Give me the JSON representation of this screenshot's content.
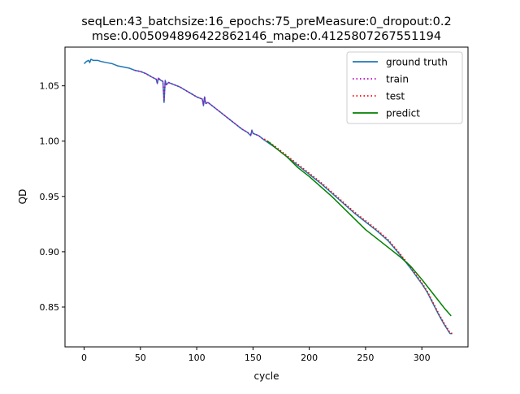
{
  "chart_data": {
    "type": "line",
    "title": "seqLen:43_batchsize:16_epochs:75_preMeasure:0_dropout:0.2",
    "subtitle": "mse:0.005094896422862146_mape:0.4125807267551194",
    "xlabel": "cycle",
    "ylabel": "QD",
    "xlim": [
      -17,
      341
    ],
    "ylim": [
      0.814,
      1.085
    ],
    "xticks": [
      0,
      50,
      100,
      150,
      200,
      250,
      300
    ],
    "yticks": [
      0.85,
      0.9,
      0.95,
      1.0,
      1.05
    ],
    "ytick_labels": [
      "0.85",
      "0.90",
      "0.95",
      "1.00",
      "1.05"
    ],
    "grid": false,
    "legend_position": "top-right",
    "series": [
      {
        "name": "ground truth",
        "color": "#1f77b4",
        "style": "solid",
        "x": [
          0,
          2,
          4,
          5,
          6,
          8,
          10,
          12,
          15,
          20,
          25,
          30,
          35,
          40,
          45,
          50,
          55,
          60,
          64,
          65,
          66,
          68,
          70,
          71,
          72,
          73,
          75,
          80,
          85,
          90,
          95,
          100,
          105,
          106,
          107,
          108,
          110,
          115,
          120,
          125,
          130,
          135,
          140,
          145,
          148,
          149,
          150,
          155,
          160,
          170,
          180,
          190,
          200,
          210,
          220,
          230,
          240,
          250,
          260,
          270,
          280,
          290,
          300,
          305,
          310,
          315,
          320,
          325,
          327
        ],
        "y": [
          1.07,
          1.072,
          1.073,
          1.071,
          1.074,
          1.073,
          1.073,
          1.073,
          1.072,
          1.071,
          1.07,
          1.068,
          1.067,
          1.066,
          1.064,
          1.063,
          1.061,
          1.058,
          1.056,
          1.052,
          1.057,
          1.055,
          1.054,
          1.035,
          1.055,
          1.051,
          1.053,
          1.051,
          1.049,
          1.046,
          1.043,
          1.04,
          1.038,
          1.032,
          1.04,
          1.034,
          1.035,
          1.031,
          1.027,
          1.023,
          1.019,
          1.015,
          1.011,
          1.008,
          1.005,
          1.01,
          1.007,
          1.005,
          1.001,
          0.994,
          0.986,
          0.978,
          0.97,
          0.962,
          0.953,
          0.944,
          0.935,
          0.927,
          0.919,
          0.91,
          0.898,
          0.885,
          0.871,
          0.863,
          0.853,
          0.843,
          0.834,
          0.826,
          0.826
        ]
      },
      {
        "name": "train",
        "color": "#bf00bf",
        "style": "dotted",
        "x": [
          45,
          50,
          55,
          60,
          64,
          65,
          66,
          68,
          70,
          71,
          72,
          73,
          75,
          80,
          85,
          90,
          95,
          100,
          105,
          106,
          107,
          108,
          110,
          115,
          120,
          125,
          130,
          135,
          140,
          145,
          148,
          149,
          150,
          155,
          160
        ],
        "y": [
          1.064,
          1.063,
          1.061,
          1.058,
          1.056,
          1.053,
          1.057,
          1.055,
          1.054,
          1.037,
          1.054,
          1.051,
          1.053,
          1.051,
          1.049,
          1.046,
          1.043,
          1.04,
          1.038,
          1.033,
          1.04,
          1.034,
          1.035,
          1.031,
          1.027,
          1.023,
          1.019,
          1.015,
          1.011,
          1.008,
          1.006,
          1.009,
          1.007,
          1.005,
          1.001
        ]
      },
      {
        "name": "test",
        "color": "#ff0000",
        "style": "dotted",
        "x": [
          160,
          170,
          180,
          190,
          200,
          210,
          220,
          230,
          240,
          250,
          260,
          270,
          280,
          290,
          300,
          305,
          310,
          315,
          320,
          325,
          327
        ],
        "y": [
          1.002,
          0.995,
          0.987,
          0.979,
          0.971,
          0.963,
          0.954,
          0.945,
          0.936,
          0.928,
          0.92,
          0.911,
          0.899,
          0.886,
          0.872,
          0.864,
          0.854,
          0.844,
          0.835,
          0.827,
          0.826
        ]
      },
      {
        "name": "predict",
        "color": "#008000",
        "style": "solid",
        "x": [
          163,
          170,
          180,
          190,
          200,
          210,
          220,
          230,
          240,
          250,
          260,
          270,
          280,
          290,
          300,
          310,
          320,
          326
        ],
        "y": [
          1.0,
          0.994,
          0.986,
          0.976,
          0.968,
          0.959,
          0.95,
          0.94,
          0.93,
          0.92,
          0.912,
          0.904,
          0.896,
          0.887,
          0.875,
          0.862,
          0.849,
          0.842
        ]
      }
    ]
  }
}
